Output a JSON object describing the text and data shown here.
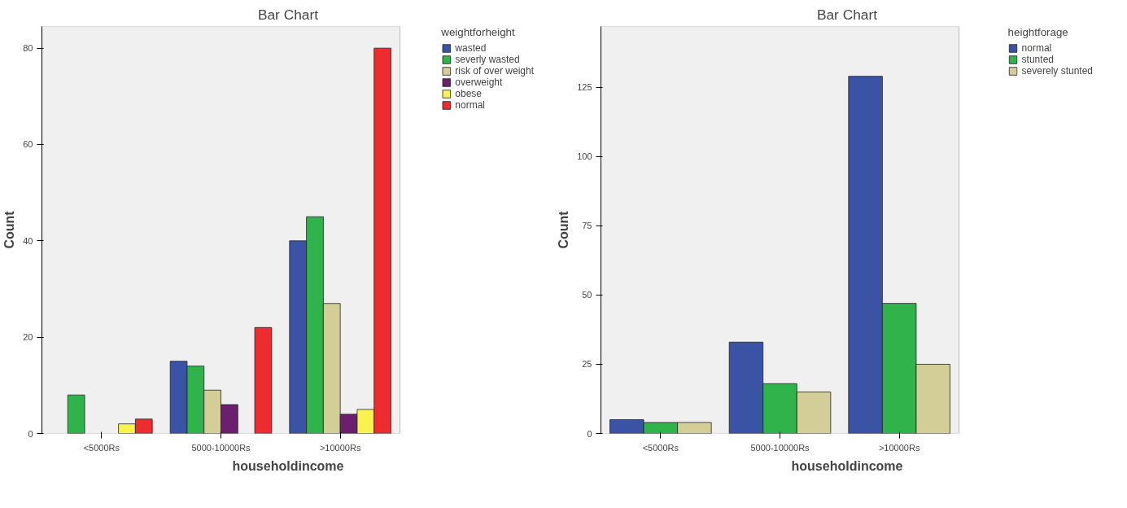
{
  "chart_data": [
    {
      "type": "bar",
      "title": "Bar Chart",
      "xlabel": "householdincome",
      "ylabel": "Count",
      "legend_title": "weightforheight",
      "legend": "right",
      "grid": false,
      "categories": [
        "<5000Rs",
        "5000-10000Rs",
        ">10000Rs"
      ],
      "ylim": [
        0,
        84.5
      ],
      "yticks": [
        0,
        20,
        40,
        60,
        80
      ],
      "series": [
        {
          "name": "wasted",
          "color": "#3a53a4",
          "values": [
            null,
            15,
            40
          ]
        },
        {
          "name": "severly wasted",
          "color": "#2fb34a",
          "values": [
            8,
            14,
            45
          ]
        },
        {
          "name": "risk of over weight",
          "color": "#d3ce97",
          "values": [
            null,
            9,
            27
          ]
        },
        {
          "name": "overweight",
          "color": "#6b1f6e",
          "values": [
            null,
            6,
            4
          ]
        },
        {
          "name": "obese",
          "color": "#f8f34e",
          "values": [
            2,
            null,
            5
          ]
        },
        {
          "name": "normal",
          "color": "#ee2b2f",
          "values": [
            3,
            22,
            80
          ]
        }
      ]
    },
    {
      "type": "bar",
      "title": "Bar Chart",
      "xlabel": "householdincome",
      "ylabel": "Count",
      "legend_title": "heightforage",
      "legend": "right",
      "grid": false,
      "categories": [
        "<5000Rs",
        "5000-10000Rs",
        ">10000Rs"
      ],
      "ylim": [
        0,
        147
      ],
      "yticks": [
        0,
        25,
        50,
        75,
        100,
        125
      ],
      "series": [
        {
          "name": "normal",
          "color": "#3a53a4",
          "values": [
            5,
            33,
            129
          ]
        },
        {
          "name": "stunted",
          "color": "#2fb34a",
          "values": [
            4,
            18,
            47
          ]
        },
        {
          "name": "severely stunted",
          "color": "#d3ce97",
          "values": [
            4,
            15,
            25
          ]
        }
      ]
    }
  ]
}
